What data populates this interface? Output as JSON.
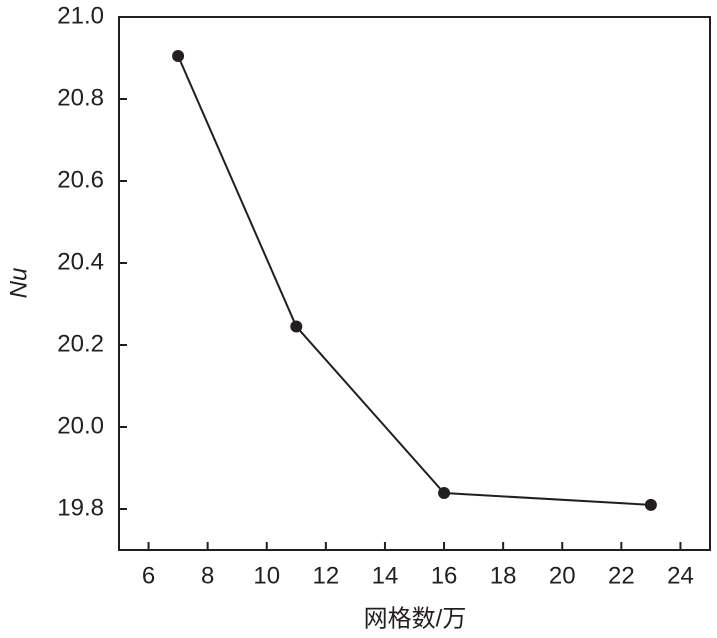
{
  "chart_data": {
    "type": "line",
    "x_label": "网格数/万",
    "y_label": "Nu",
    "x": [
      7,
      11,
      16,
      23
    ],
    "series": [
      {
        "color": "#231f20",
        "values": [
          20.905,
          20.245,
          19.839,
          19.81
        ]
      }
    ],
    "xlim": [
      5,
      25
    ],
    "xticks": [
      6,
      8,
      10,
      12,
      14,
      16,
      18,
      20,
      22,
      24
    ],
    "ylim": [
      19.7,
      21.0
    ],
    "yticks": [
      19.8,
      {
        "value": 20,
        "label": "20.0"
      },
      20.2,
      20.4,
      20.6,
      20.8,
      {
        "value": 21,
        "label": "21.0"
      }
    ],
    "grid": false
  }
}
